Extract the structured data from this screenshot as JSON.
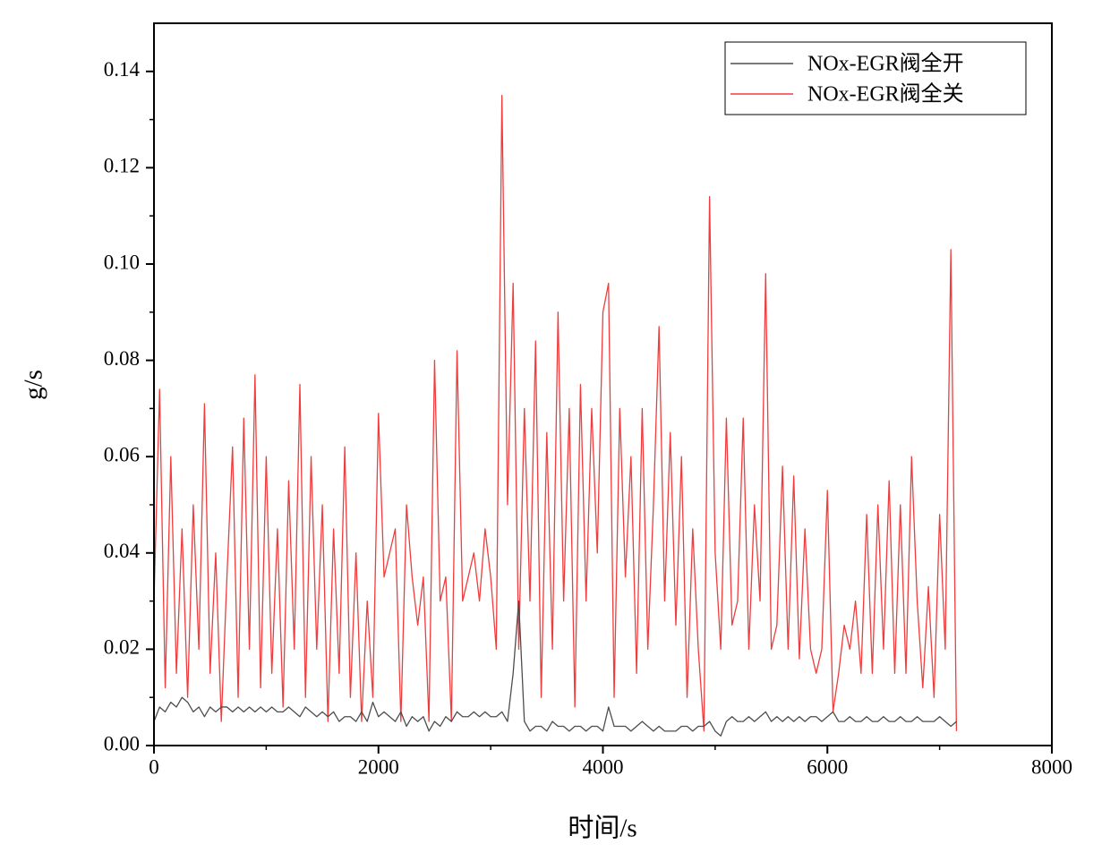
{
  "chart_data": {
    "type": "line",
    "xlabel": "时间/s",
    "ylabel": "g/s",
    "xlim": [
      0,
      8000
    ],
    "ylim": [
      0,
      0.15
    ],
    "xticks": [
      0,
      2000,
      4000,
      6000,
      8000
    ],
    "xminor_ticks": [
      1000,
      3000,
      5000,
      7000
    ],
    "yticks": [
      {
        "value": 0,
        "label": "0.00"
      },
      0.02,
      0.04,
      0.06,
      0.08,
      {
        "value": 0.1,
        "label": "0.10"
      },
      0.12,
      0.14
    ],
    "yminor_ticks": [
      0.01,
      0.03,
      0.05,
      0.07,
      0.09,
      0.11,
      0.13
    ],
    "legend": "upper right",
    "grid": false,
    "x": [
      0,
      50,
      100,
      150,
      200,
      250,
      300,
      350,
      400,
      450,
      500,
      550,
      600,
      650,
      700,
      750,
      800,
      850,
      900,
      950,
      1000,
      1050,
      1100,
      1150,
      1200,
      1250,
      1300,
      1350,
      1400,
      1450,
      1500,
      1550,
      1600,
      1650,
      1700,
      1750,
      1800,
      1850,
      1900,
      1950,
      2000,
      2050,
      2100,
      2150,
      2200,
      2250,
      2300,
      2350,
      2400,
      2450,
      2500,
      2550,
      2600,
      2650,
      2700,
      2750,
      2800,
      2850,
      2900,
      2950,
      3000,
      3050,
      3100,
      3150,
      3200,
      3250,
      3300,
      3350,
      3400,
      3450,
      3500,
      3550,
      3600,
      3650,
      3700,
      3750,
      3800,
      3850,
      3900,
      3950,
      4000,
      4050,
      4100,
      4150,
      4200,
      4250,
      4300,
      4350,
      4400,
      4450,
      4500,
      4550,
      4600,
      4650,
      4700,
      4750,
      4800,
      4850,
      4900,
      4950,
      5000,
      5050,
      5100,
      5150,
      5200,
      5250,
      5300,
      5350,
      5400,
      5450,
      5500,
      5550,
      5600,
      5650,
      5700,
      5750,
      5800,
      5850,
      5900,
      5950,
      6000,
      6050,
      6100,
      6150,
      6200,
      6250,
      6300,
      6350,
      6400,
      6450,
      6500,
      6550,
      6600,
      6650,
      6700,
      6750,
      6800,
      6850,
      6900,
      6950,
      7000,
      7050,
      7100,
      7150
    ],
    "series": [
      {
        "name": "NOx-EGR阀全开",
        "color": "#4d4d4d",
        "values": [
          0.005,
          0.008,
          0.007,
          0.009,
          0.008,
          0.01,
          0.009,
          0.007,
          0.008,
          0.006,
          0.008,
          0.007,
          0.008,
          0.008,
          0.007,
          0.008,
          0.007,
          0.008,
          0.007,
          0.008,
          0.007,
          0.008,
          0.007,
          0.007,
          0.008,
          0.007,
          0.006,
          0.008,
          0.007,
          0.006,
          0.007,
          0.006,
          0.007,
          0.005,
          0.006,
          0.006,
          0.005,
          0.007,
          0.005,
          0.009,
          0.006,
          0.007,
          0.006,
          0.005,
          0.007,
          0.004,
          0.006,
          0.005,
          0.006,
          0.003,
          0.005,
          0.004,
          0.006,
          0.005,
          0.007,
          0.006,
          0.006,
          0.007,
          0.006,
          0.007,
          0.006,
          0.006,
          0.007,
          0.005,
          0.015,
          0.03,
          0.005,
          0.003,
          0.004,
          0.004,
          0.003,
          0.005,
          0.004,
          0.004,
          0.003,
          0.004,
          0.004,
          0.003,
          0.004,
          0.004,
          0.003,
          0.008,
          0.004,
          0.004,
          0.004,
          0.003,
          0.004,
          0.005,
          0.004,
          0.003,
          0.004,
          0.003,
          0.003,
          0.003,
          0.004,
          0.004,
          0.003,
          0.004,
          0.004,
          0.005,
          0.003,
          0.002,
          0.005,
          0.006,
          0.005,
          0.005,
          0.006,
          0.005,
          0.006,
          0.007,
          0.005,
          0.006,
          0.005,
          0.006,
          0.005,
          0.006,
          0.005,
          0.006,
          0.006,
          0.005,
          0.006,
          0.007,
          0.005,
          0.005,
          0.006,
          0.005,
          0.005,
          0.006,
          0.005,
          0.005,
          0.006,
          0.005,
          0.005,
          0.006,
          0.005,
          0.005,
          0.006,
          0.005,
          0.005,
          0.005,
          0.006,
          0.005,
          0.004,
          0.005
        ]
      },
      {
        "name": "NOx-EGR阀全关",
        "color": "#f03c3c",
        "values": [
          0.03,
          0.074,
          0.012,
          0.06,
          0.015,
          0.045,
          0.01,
          0.05,
          0.02,
          0.071,
          0.015,
          0.04,
          0.005,
          0.035,
          0.062,
          0.01,
          0.068,
          0.02,
          0.077,
          0.012,
          0.06,
          0.015,
          0.045,
          0.008,
          0.055,
          0.02,
          0.075,
          0.01,
          0.06,
          0.02,
          0.05,
          0.005,
          0.045,
          0.015,
          0.062,
          0.01,
          0.04,
          0.005,
          0.03,
          0.01,
          0.069,
          0.035,
          0.04,
          0.045,
          0.005,
          0.05,
          0.035,
          0.025,
          0.035,
          0.005,
          0.08,
          0.03,
          0.035,
          0.005,
          0.082,
          0.03,
          0.035,
          0.04,
          0.03,
          0.045,
          0.035,
          0.02,
          0.135,
          0.05,
          0.096,
          0.02,
          0.07,
          0.03,
          0.084,
          0.01,
          0.065,
          0.02,
          0.09,
          0.03,
          0.07,
          0.008,
          0.075,
          0.03,
          0.07,
          0.04,
          0.09,
          0.096,
          0.01,
          0.07,
          0.035,
          0.06,
          0.015,
          0.07,
          0.02,
          0.05,
          0.087,
          0.03,
          0.065,
          0.025,
          0.06,
          0.01,
          0.045,
          0.02,
          0.003,
          0.114,
          0.04,
          0.02,
          0.068,
          0.025,
          0.03,
          0.068,
          0.02,
          0.05,
          0.03,
          0.098,
          0.02,
          0.025,
          0.058,
          0.02,
          0.056,
          0.018,
          0.045,
          0.02,
          0.015,
          0.02,
          0.053,
          0.007,
          0.015,
          0.025,
          0.02,
          0.03,
          0.015,
          0.048,
          0.015,
          0.05,
          0.02,
          0.055,
          0.015,
          0.05,
          0.015,
          0.06,
          0.03,
          0.012,
          0.033,
          0.01,
          0.048,
          0.02,
          0.103,
          0.003
        ]
      }
    ]
  }
}
